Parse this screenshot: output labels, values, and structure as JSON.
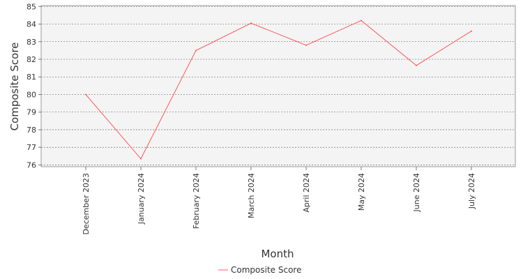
{
  "chart_data": {
    "type": "line",
    "title": "",
    "xlabel": "Month",
    "ylabel": "Composite Score",
    "categories": [
      "December 2023",
      "January 2024",
      "February 2024",
      "March 2024",
      "April 2024",
      "May 2024",
      "June 2024",
      "July 2024"
    ],
    "series": [
      {
        "name": "Composite Score",
        "color": "#ff5555",
        "values": [
          80.0,
          76.35,
          82.5,
          84.05,
          82.8,
          84.2,
          81.65,
          83.6
        ]
      }
    ],
    "ylim": [
      75.9,
      85.05
    ],
    "yticks": [
      76,
      77,
      78,
      79,
      80,
      81,
      82,
      83,
      84,
      85
    ],
    "grid": true,
    "legend": "bottom-center",
    "plot_background": "#f4f4f4"
  }
}
